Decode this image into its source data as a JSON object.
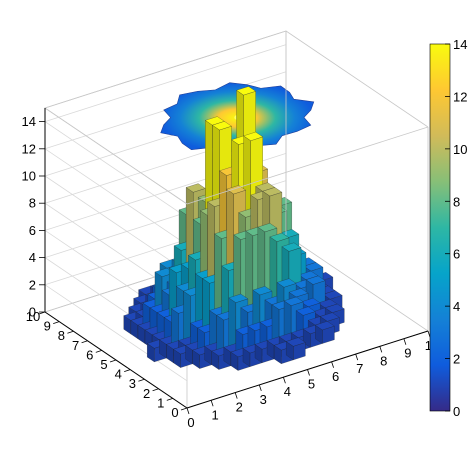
{
  "chart_data": {
    "type": "lego",
    "title": "",
    "xlabel": "",
    "ylabel": "",
    "zlabel": "",
    "grid": true,
    "x_ticks": [
      "0",
      "1",
      "2",
      "3",
      "4",
      "5",
      "6",
      "7",
      "8",
      "9",
      "10"
    ],
    "y_ticks": [
      "0",
      "1",
      "2",
      "3",
      "4",
      "5",
      "6",
      "7",
      "8",
      "9",
      "10"
    ],
    "z_ticks": [
      "0",
      "2",
      "4",
      "6",
      "8",
      "10",
      "12",
      "14"
    ],
    "xlim": [
      0,
      10
    ],
    "ylim": [
      0,
      10
    ],
    "zlim": [
      0,
      15
    ],
    "palette": "kBird",
    "colorbar": {
      "position": "right",
      "range": [
        0,
        14
      ],
      "ticks": [
        "0",
        "2",
        "4",
        "6",
        "8",
        "10",
        "12",
        "14"
      ],
      "colors": [
        "#352a87",
        "#0f5cdd",
        "#1481d6",
        "#06a4ca",
        "#2eb7a4",
        "#87bf77",
        "#d1bb59",
        "#fec832",
        "#f9fb0e"
      ]
    },
    "projection": {
      "position": "top",
      "description": "2D colour contour on the top plane"
    },
    "distribution": {
      "kind": "gaussian-2d",
      "mean": [
        5,
        5
      ],
      "sigma": [
        1.45,
        1.45
      ],
      "peak_count": 14,
      "bins_x": 20,
      "bins_y": 20
    }
  }
}
